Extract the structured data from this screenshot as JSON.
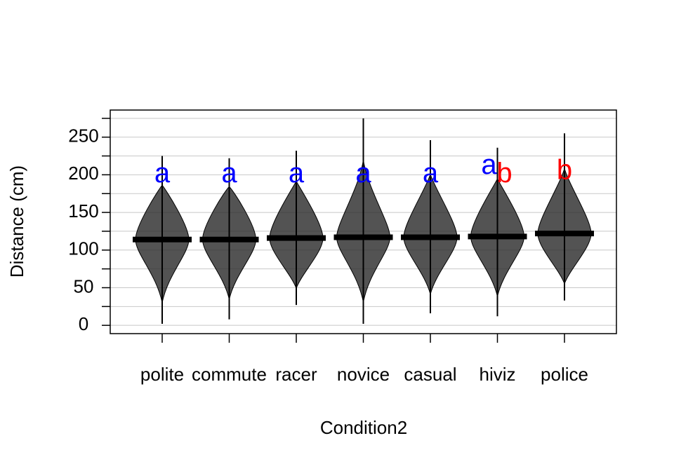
{
  "chart_data": {
    "type": "pirate",
    "xlabel": "Condition2",
    "ylabel": "Distance (cm)",
    "categories": [
      "polite",
      "commute",
      "racer",
      "novice",
      "casual",
      "hiviz",
      "police"
    ],
    "values": [
      114,
      114,
      116,
      117,
      117,
      118,
      122
    ],
    "mins": [
      2,
      8,
      27,
      2,
      16,
      12,
      33
    ],
    "maxs": [
      225,
      222,
      232,
      275,
      246,
      236,
      255
    ],
    "letters": [
      [
        "a"
      ],
      [
        "a"
      ],
      [
        "a"
      ],
      [
        "a"
      ],
      [
        "a"
      ],
      [
        "a",
        "b"
      ],
      [
        "b"
      ]
    ],
    "letter_colors": {
      "a": "#0000ff",
      "b": "#ff0000"
    },
    "ylim": [
      -11,
      286
    ],
    "yticks": [
      0,
      50,
      100,
      150,
      200,
      250
    ],
    "minor_yticks": [
      25,
      75,
      125,
      175,
      225,
      275
    ],
    "grid": true
  }
}
